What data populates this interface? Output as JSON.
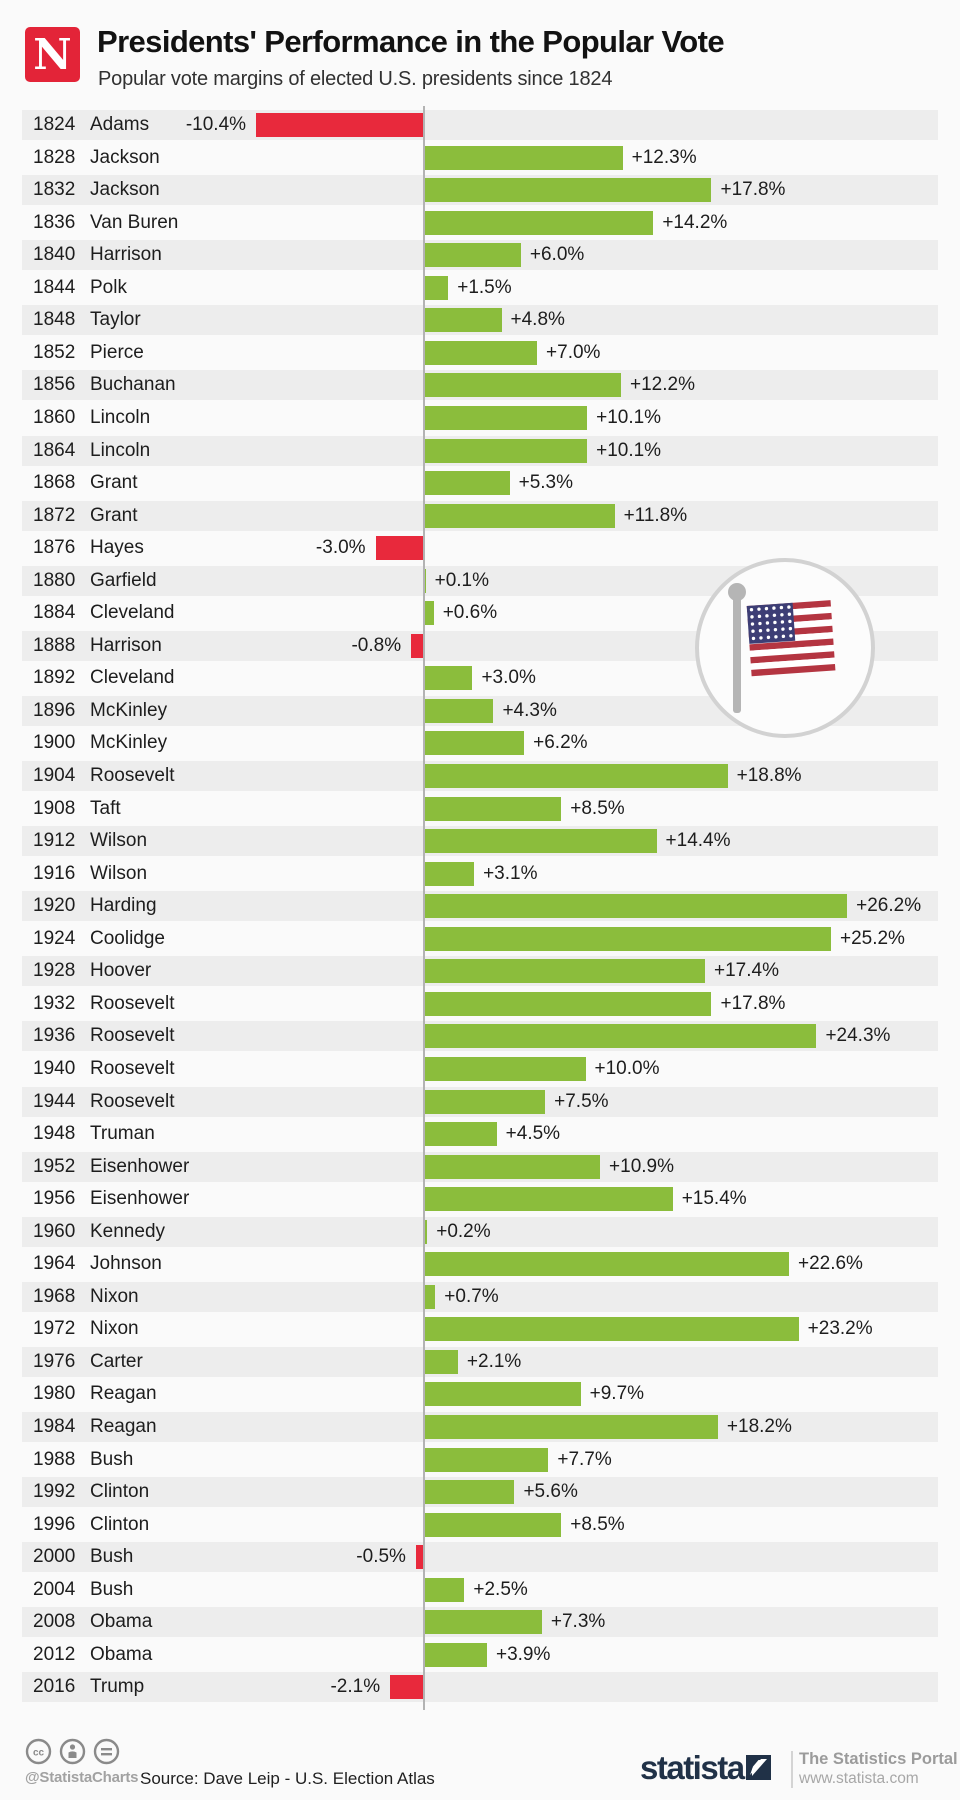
{
  "header": {
    "logo_letter": "N",
    "title": "Presidents' Performance in the Popular Vote",
    "subtitle": "Popular vote margins of elected U.S. presidents since 1824"
  },
  "chart_data": {
    "type": "bar",
    "orientation": "horizontal",
    "unit": "%",
    "xlim": [
      -12,
      30
    ],
    "positive_color": "#8bbd3c",
    "negative_color": "#e8293c",
    "rows": [
      {
        "year": "1824",
        "president": "Adams",
        "value": -10.4,
        "label": "-10.4%"
      },
      {
        "year": "1828",
        "president": "Jackson",
        "value": 12.3,
        "label": "+12.3%"
      },
      {
        "year": "1832",
        "president": "Jackson",
        "value": 17.8,
        "label": "+17.8%"
      },
      {
        "year": "1836",
        "president": "Van Buren",
        "value": 14.2,
        "label": "+14.2%"
      },
      {
        "year": "1840",
        "president": "Harrison",
        "value": 6.0,
        "label": "+6.0%"
      },
      {
        "year": "1844",
        "president": "Polk",
        "value": 1.5,
        "label": "+1.5%"
      },
      {
        "year": "1848",
        "president": "Taylor",
        "value": 4.8,
        "label": "+4.8%"
      },
      {
        "year": "1852",
        "president": "Pierce",
        "value": 7.0,
        "label": "+7.0%"
      },
      {
        "year": "1856",
        "president": "Buchanan",
        "value": 12.2,
        "label": "+12.2%"
      },
      {
        "year": "1860",
        "president": "Lincoln",
        "value": 10.1,
        "label": "+10.1%"
      },
      {
        "year": "1864",
        "president": "Lincoln",
        "value": 10.1,
        "label": "+10.1%"
      },
      {
        "year": "1868",
        "president": "Grant",
        "value": 5.3,
        "label": "+5.3%"
      },
      {
        "year": "1872",
        "president": "Grant",
        "value": 11.8,
        "label": "+11.8%"
      },
      {
        "year": "1876",
        "president": "Hayes",
        "value": -3.0,
        "label": "-3.0%"
      },
      {
        "year": "1880",
        "president": "Garfield",
        "value": 0.1,
        "label": "+0.1%"
      },
      {
        "year": "1884",
        "president": "Cleveland",
        "value": 0.6,
        "label": "+0.6%"
      },
      {
        "year": "1888",
        "president": "Harrison",
        "value": -0.8,
        "label": "-0.8%"
      },
      {
        "year": "1892",
        "president": "Cleveland",
        "value": 3.0,
        "label": "+3.0%"
      },
      {
        "year": "1896",
        "president": "McKinley",
        "value": 4.3,
        "label": "+4.3%"
      },
      {
        "year": "1900",
        "president": "McKinley",
        "value": 6.2,
        "label": "+6.2%"
      },
      {
        "year": "1904",
        "president": "Roosevelt",
        "value": 18.8,
        "label": "+18.8%"
      },
      {
        "year": "1908",
        "president": "Taft",
        "value": 8.5,
        "label": "+8.5%"
      },
      {
        "year": "1912",
        "president": "Wilson",
        "value": 14.4,
        "label": "+14.4%"
      },
      {
        "year": "1916",
        "president": "Wilson",
        "value": 3.1,
        "label": "+3.1%"
      },
      {
        "year": "1920",
        "president": "Harding",
        "value": 26.2,
        "label": "+26.2%"
      },
      {
        "year": "1924",
        "president": "Coolidge",
        "value": 25.2,
        "label": "+25.2%"
      },
      {
        "year": "1928",
        "president": "Hoover",
        "value": 17.4,
        "label": "+17.4%"
      },
      {
        "year": "1932",
        "president": "Roosevelt",
        "value": 17.8,
        "label": "+17.8%"
      },
      {
        "year": "1936",
        "president": "Roosevelt",
        "value": 24.3,
        "label": "+24.3%"
      },
      {
        "year": "1940",
        "president": "Roosevelt",
        "value": 10.0,
        "label": "+10.0%"
      },
      {
        "year": "1944",
        "president": "Roosevelt",
        "value": 7.5,
        "label": "+7.5%"
      },
      {
        "year": "1948",
        "president": "Truman",
        "value": 4.5,
        "label": "+4.5%"
      },
      {
        "year": "1952",
        "president": "Eisenhower",
        "value": 10.9,
        "label": "+10.9%"
      },
      {
        "year": "1956",
        "president": "Eisenhower",
        "value": 15.4,
        "label": "+15.4%"
      },
      {
        "year": "1960",
        "president": "Kennedy",
        "value": 0.2,
        "label": "+0.2%"
      },
      {
        "year": "1964",
        "president": "Johnson",
        "value": 22.6,
        "label": "+22.6%"
      },
      {
        "year": "1968",
        "president": "Nixon",
        "value": 0.7,
        "label": "+0.7%"
      },
      {
        "year": "1972",
        "president": "Nixon",
        "value": 23.2,
        "label": "+23.2%"
      },
      {
        "year": "1976",
        "president": "Carter",
        "value": 2.1,
        "label": "+2.1%"
      },
      {
        "year": "1980",
        "president": "Reagan",
        "value": 9.7,
        "label": "+9.7%"
      },
      {
        "year": "1984",
        "president": "Reagan",
        "value": 18.2,
        "label": "+18.2%"
      },
      {
        "year": "1988",
        "president": "Bush",
        "value": 7.7,
        "label": "+7.7%"
      },
      {
        "year": "1992",
        "president": "Clinton",
        "value": 5.6,
        "label": "+5.6%"
      },
      {
        "year": "1996",
        "president": "Clinton",
        "value": 8.5,
        "label": "+8.5%"
      },
      {
        "year": "2000",
        "president": "Bush",
        "value": -0.5,
        "label": "-0.5%"
      },
      {
        "year": "2004",
        "president": "Bush",
        "value": 2.5,
        "label": "+2.5%"
      },
      {
        "year": "2008",
        "president": "Obama",
        "value": 7.3,
        "label": "+7.3%"
      },
      {
        "year": "2012",
        "president": "Obama",
        "value": 3.9,
        "label": "+3.9%"
      },
      {
        "year": "2016",
        "president": "Trump",
        "value": -2.1,
        "label": "-2.1%"
      }
    ]
  },
  "emblem": {
    "name": "us-flag-emblem",
    "flag_blue": "#3d3e75",
    "flag_red": "#b43541",
    "pole_gray": "#b5b5b5"
  },
  "footer": {
    "license_icons": [
      "cc-icon",
      "attribution-person-icon",
      "no-derivatives-icon"
    ],
    "handle": "@StatistaCharts",
    "source": "Source: Dave Leip - U.S. Election Atlas",
    "brand": "statista",
    "portal_title": "The Statistics Portal",
    "portal_url": "www.statista.com",
    "brand_color": "#203147"
  }
}
